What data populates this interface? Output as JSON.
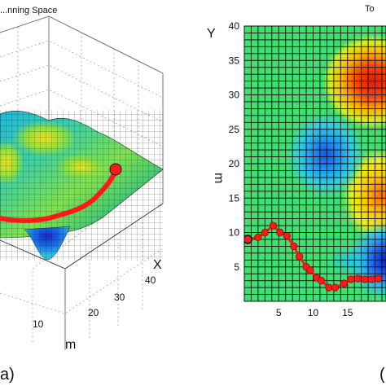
{
  "panel_a": {
    "title": "...nning Space",
    "label": "a)",
    "axis_x_label": "X",
    "axis_y_label": "m",
    "x_ticks": [
      "10",
      "20",
      "30",
      "40"
    ]
  },
  "panel_b": {
    "title": "To",
    "label": "(",
    "axis_y_label": "Y",
    "axis_y_unit": "m",
    "x_ticks": [
      "5",
      "10",
      "15"
    ],
    "y_ticks": [
      "5",
      "10",
      "15",
      "20",
      "25",
      "30",
      "35",
      "40"
    ]
  },
  "chart_data": [
    {
      "type": "surface",
      "title": "...nning Space",
      "x_axis_label": "X",
      "y_axis_label": "m",
      "x_ticks": [
        10,
        20,
        30,
        40
      ],
      "colormap": "jet",
      "path_color": "#ff1a1a",
      "description_of_path": "red planned path across the surface from left to the raised end at right"
    },
    {
      "type": "heatmap",
      "title": "To",
      "ylabel": "Y",
      "y_unit_label": "m",
      "xlim": [
        0,
        20
      ],
      "ylim": [
        0,
        40
      ],
      "x_ticks": [
        5,
        10,
        15
      ],
      "y_ticks": [
        5,
        10,
        15,
        20,
        25,
        30,
        35,
        40
      ],
      "grid": true,
      "colormap": "jet",
      "path_color": "#ff1a1a",
      "path": [
        [
          0.5,
          9
        ],
        [
          2,
          9.3
        ],
        [
          3,
          10
        ],
        [
          4.2,
          11
        ],
        [
          5.2,
          10
        ],
        [
          6.2,
          9.5
        ],
        [
          7.2,
          8
        ],
        [
          8,
          6.5
        ],
        [
          9,
          5
        ],
        [
          9.6,
          4.5
        ],
        [
          10.5,
          3.4
        ],
        [
          11.2,
          3
        ],
        [
          12.3,
          2
        ],
        [
          13.2,
          2
        ],
        [
          14.5,
          2.6
        ],
        [
          15.5,
          3.2
        ],
        [
          16.5,
          3.3
        ],
        [
          17.5,
          3.2
        ],
        [
          18.5,
          3.2
        ],
        [
          19.5,
          3.3
        ]
      ]
    }
  ]
}
